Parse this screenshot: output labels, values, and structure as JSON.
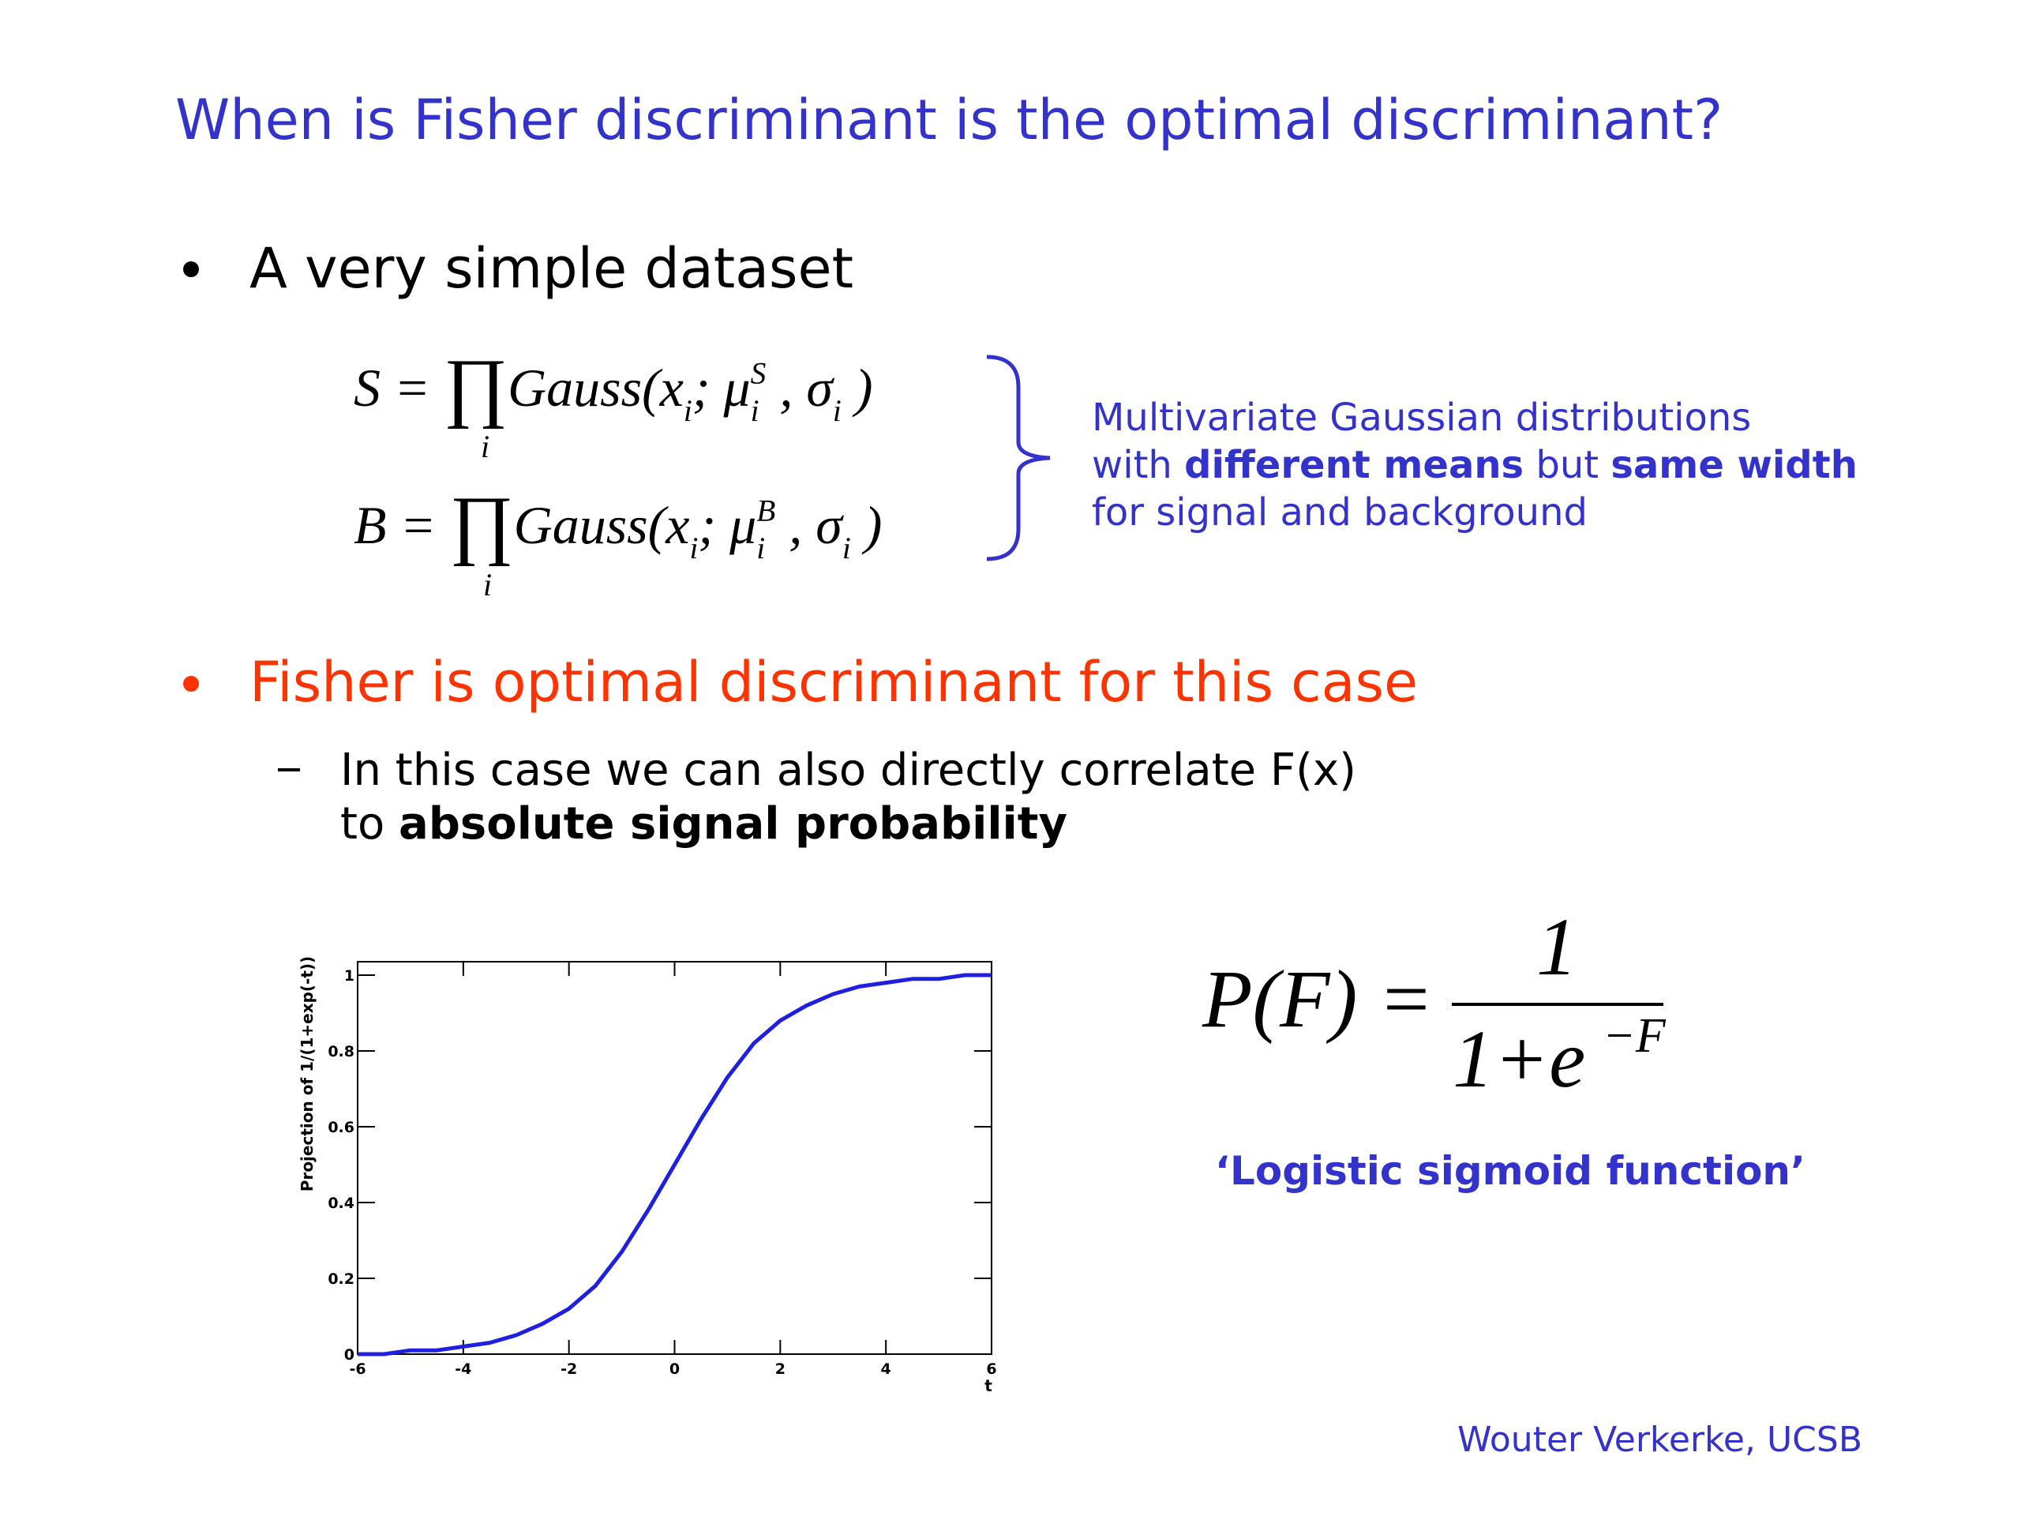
{
  "title": "When is Fisher discriminant is the optimal discriminant?",
  "bullets": [
    {
      "text": "A very simple dataset",
      "color": "#000000"
    },
    {
      "text": "Fisher is optimal discriminant for this case",
      "color": "#ff3300"
    }
  ],
  "formulas": [
    {
      "parts": [
        {
          "text": "S = "
        },
        {
          "text": "∏",
          "pos": "big"
        },
        {
          "text": "Gauss(x"
        },
        {
          "text": "i",
          "pos": "sub"
        },
        {
          "text": "; μ"
        },
        {
          "text": "i",
          "pos": "sub"
        },
        {
          "text": "S",
          "pos": "sup"
        },
        {
          "text": " , σ"
        },
        {
          "text": "i",
          "pos": "sub"
        },
        {
          "text": " )"
        }
      ],
      "index": "i"
    },
    {
      "parts": [
        {
          "text": "B = "
        },
        {
          "text": "∏",
          "pos": "big"
        },
        {
          "text": "Gauss(x"
        },
        {
          "text": "i",
          "pos": "sub"
        },
        {
          "text": "; μ"
        },
        {
          "text": "i",
          "pos": "sub"
        },
        {
          "text": "B",
          "pos": "sup"
        },
        {
          "text": " , σ"
        },
        {
          "text": "i",
          "pos": "sub"
        },
        {
          "text": " )"
        }
      ],
      "index": "i"
    }
  ],
  "note": [
    [
      {
        "text": "Multivariate Gaussian distributions"
      }
    ],
    [
      {
        "text": "with "
      },
      {
        "text": "different means",
        "bold": true
      },
      {
        "text": " but "
      },
      {
        "text": "same width",
        "bold": true
      }
    ],
    [
      {
        "text": "for signal and background"
      }
    ]
  ],
  "sub_bullet": [
    [
      {
        "text": "In this case we can also directly correlate F(x)"
      }
    ],
    [
      {
        "text": "to "
      },
      {
        "text": "absolute signal probability",
        "bold": true
      }
    ]
  ],
  "chart_data": {
    "type": "line",
    "x_label": "t",
    "y_label": "Projection of 1/(1+exp(-t))",
    "x": [
      -6,
      -5.5,
      -5,
      -4.5,
      -4,
      -3.5,
      -3,
      -2.5,
      -2,
      -1.5,
      -1,
      -0.5,
      0,
      0.5,
      1,
      1.5,
      2,
      2.5,
      3,
      3.5,
      4,
      4.5,
      5,
      5.5,
      6
    ],
    "values": [
      0,
      0,
      0.01,
      0.01,
      0.02,
      0.03,
      0.05,
      0.08,
      0.12,
      0.18,
      0.27,
      0.38,
      0.5,
      0.62,
      0.73,
      0.82,
      0.88,
      0.92,
      0.95,
      0.97,
      0.98,
      0.99,
      0.99,
      1,
      1
    ],
    "color": "#1f1fe0",
    "xlim": [
      -6,
      6
    ],
    "ylim": [
      0,
      1
    ],
    "xticks": [
      -6,
      -4,
      -2,
      0,
      2,
      4,
      6
    ],
    "yticks": [
      0,
      0.2,
      0.4,
      0.6,
      0.8,
      1
    ]
  },
  "sigmoid_formula": {
    "lhs": "P(F) =",
    "numerator": "1",
    "denominator": "1+e",
    "exponent": "−F"
  },
  "caption": "‘Logistic sigmoid function’",
  "footer": "Wouter Verkerke, UCSB"
}
